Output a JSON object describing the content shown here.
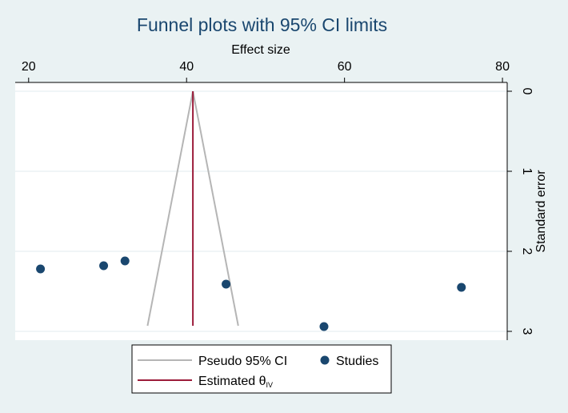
{
  "chart_data": {
    "type": "scatter",
    "title": "Funnel plots with 95% CI limits",
    "xlabel": "Effect size",
    "ylabel": "Standard error",
    "x_axis_position": "top",
    "y_axis_position": "right",
    "y_reversed": true,
    "xlim": [
      18.3,
      80.6
    ],
    "ylim": [
      0,
      3.1
    ],
    "x_ticks": [
      20,
      40,
      60,
      80
    ],
    "y_ticks": [
      0,
      1,
      2,
      3
    ],
    "grid": true,
    "estimate": 40.8,
    "pseudo_ci_multiplier": 1.96,
    "funnel_se_max": 2.93,
    "studies": [
      {
        "x": 21.5,
        "y": 2.22
      },
      {
        "x": 29.5,
        "y": 2.18
      },
      {
        "x": 32.2,
        "y": 2.12
      },
      {
        "x": 45.0,
        "y": 2.41
      },
      {
        "x": 57.4,
        "y": 2.94
      },
      {
        "x": 74.8,
        "y": 2.45
      }
    ],
    "legend": {
      "position": "bottom",
      "items": [
        {
          "label": "Pseudo 95% CI",
          "symbol": "line",
          "color": "#b5b5b5"
        },
        {
          "label": "Studies",
          "symbol": "marker",
          "color": "#1a476f"
        },
        {
          "label": "Estimated θ",
          "subscript": "IV",
          "symbol": "line",
          "color": "#9c1c3a"
        }
      ]
    },
    "colors": {
      "background": "#eaf2f3",
      "plot_bg": "#ffffff",
      "grid": "#e8eff2",
      "ci": "#b5b5b5",
      "estimate": "#9c1c3a",
      "marker": "#1a476f",
      "title": "#1a476f",
      "axis": "#000000"
    }
  }
}
